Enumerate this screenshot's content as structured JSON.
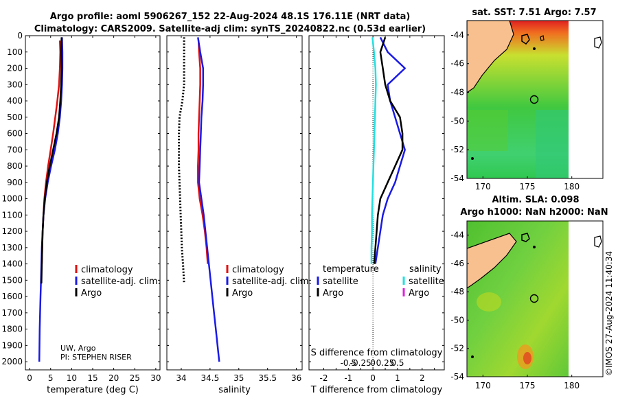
{
  "header": {
    "line1": "Argo profile: aoml 5906267_152 22-Aug-2024 48.1S 176.11E (NRT data)",
    "line2": "Climatology: CARS2009. Satellite-adj clim: synTS_20240822.nc (0.53d earlier)"
  },
  "colors": {
    "climatology": "#e01010",
    "satellite": "#1a1ae6",
    "argo": "#000000",
    "sal_satellite": "#22e0e0",
    "sal_argo": "#e020e0",
    "land": "#f7c08e"
  },
  "depth_axis": {
    "ticks": [
      "0",
      "100",
      "200",
      "300",
      "400",
      "500",
      "600",
      "700",
      "800",
      "900",
      "1000",
      "1100",
      "1200",
      "1300",
      "1400",
      "1500",
      "1600",
      "1700",
      "1800",
      "1900",
      "2000"
    ]
  },
  "legend": {
    "climatology": "climatology",
    "satellite_clim": "satellite-adj. clim.",
    "argo": "Argo",
    "temperature_head": "temperature",
    "salinity_head": "salinity",
    "satellite": "satellite"
  },
  "credit": {
    "line1": "UW, Argo",
    "line2": "PI: STEPHEN RISER"
  },
  "map_top": {
    "title": "sat. SST: 7.51 Argo: 7.57"
  },
  "map_bottom": {
    "title1": "Altim. SLA: 0.098",
    "title2": "Argo h1000: NaN h2000: NaN"
  },
  "map_axes": {
    "lon_ticks": [
      "170",
      "175",
      "180"
    ],
    "lat_ticks": [
      "-44",
      "-46",
      "-48",
      "-50",
      "-52",
      "-54"
    ]
  },
  "watermark": "©IMOS 27-Aug-2024 11:40:34",
  "chart_data": [
    {
      "type": "line",
      "name": "temperature",
      "xlabel": "temperature (deg C)",
      "ylabel": "",
      "xlim": [
        -1,
        31
      ],
      "ylim": [
        2050,
        0
      ],
      "xticks": [
        "0",
        "5",
        "10",
        "15",
        "20",
        "25",
        "30"
      ],
      "series": [
        {
          "name": "climatology",
          "color": "climatology",
          "x": [
            7.2,
            7.3,
            7.2,
            7.0,
            6.6,
            6.1,
            5.6,
            5.0,
            4.4,
            3.9,
            3.5,
            3.3,
            3.1,
            3.0,
            2.9
          ],
          "y": [
            30,
            100,
            200,
            300,
            400,
            500,
            600,
            700,
            800,
            900,
            1000,
            1100,
            1200,
            1300,
            1400
          ]
        },
        {
          "name": "satellite-adj. clim.",
          "color": "satellite",
          "x": [
            7.7,
            7.8,
            7.8,
            7.7,
            7.5,
            7.2,
            6.7,
            6.0,
            5.1,
            4.3,
            3.7,
            3.3,
            3.1,
            2.9,
            2.8,
            2.7,
            2.6,
            2.5,
            2.4,
            2.35,
            2.3
          ],
          "y": [
            10,
            100,
            200,
            300,
            400,
            500,
            600,
            700,
            800,
            900,
            1000,
            1100,
            1200,
            1300,
            1400,
            1500,
            1600,
            1700,
            1800,
            1900,
            2000
          ]
        },
        {
          "name": "Argo",
          "color": "argo",
          "x": [
            7.6,
            7.5,
            7.6,
            7.5,
            7.3,
            7.0,
            6.4,
            5.6,
            4.8,
            4.1,
            3.6,
            3.3,
            3.1,
            3.0,
            2.9,
            2.8
          ],
          "y": [
            10,
            100,
            200,
            300,
            400,
            500,
            600,
            700,
            800,
            900,
            1000,
            1100,
            1200,
            1300,
            1400,
            1520
          ]
        }
      ]
    },
    {
      "type": "line",
      "name": "salinity",
      "xlabel": "salinity",
      "ylabel": "",
      "xlim": [
        33.75,
        36.1
      ],
      "ylim": [
        2050,
        0
      ],
      "xticks": [
        "34",
        "34.5",
        "35",
        "35.5",
        "36"
      ],
      "series": [
        {
          "name": "climatology",
          "color": "climatology",
          "x": [
            34.3,
            34.31,
            34.33,
            34.33,
            34.32,
            34.31,
            34.3,
            34.3,
            34.29,
            34.29,
            34.32,
            34.37,
            34.41,
            34.44,
            34.46
          ],
          "y": [
            30,
            100,
            200,
            300,
            400,
            500,
            600,
            700,
            800,
            900,
            1000,
            1100,
            1200,
            1300,
            1400
          ]
        },
        {
          "name": "satellite-adj. clim.",
          "color": "satellite",
          "x": [
            34.29,
            34.33,
            34.38,
            34.38,
            34.37,
            34.35,
            34.34,
            34.33,
            34.32,
            34.31,
            34.35,
            34.39,
            34.42,
            34.45,
            34.48,
            34.51,
            34.54,
            34.57,
            34.6,
            34.63,
            34.66
          ],
          "y": [
            10,
            100,
            200,
            300,
            400,
            500,
            600,
            700,
            800,
            900,
            1000,
            1100,
            1200,
            1300,
            1400,
            1500,
            1600,
            1700,
            1800,
            1900,
            2000
          ]
        },
        {
          "name": "Argo",
          "color": "argo",
          "dashed": true,
          "x": [
            34.05,
            34.05,
            34.05,
            34.05,
            34.02,
            33.97,
            33.96,
            33.96,
            33.96,
            33.97,
            33.98,
            33.99,
            34.0,
            34.01,
            34.03,
            34.05
          ],
          "y": [
            10,
            100,
            200,
            300,
            400,
            500,
            600,
            700,
            800,
            900,
            1000,
            1100,
            1200,
            1300,
            1400,
            1520
          ]
        }
      ]
    },
    {
      "type": "line",
      "name": "difference",
      "xlabel": "T difference from climatology",
      "xlabel_top": "S difference from climatology",
      "xlim": [
        -2.6,
        2.9
      ],
      "ylim": [
        2050,
        0
      ],
      "xticks": [
        "-2",
        "-1.5",
        "-1",
        "-0.5",
        "0",
        "0.5",
        "1",
        "1.5",
        "2",
        "2.5"
      ],
      "sticks": [
        "-0.5",
        "-0.25",
        "0",
        "0.25",
        "0.5"
      ],
      "series": [
        {
          "name": "T satellite",
          "color": "satellite",
          "x": [
            0.3,
            0.6,
            1.3,
            0.6,
            0.7,
            0.9,
            1.1,
            1.3,
            1.1,
            0.9,
            0.6,
            0.4,
            0.3,
            0.2,
            0.1
          ],
          "y": [
            10,
            100,
            200,
            300,
            400,
            500,
            600,
            700,
            800,
            900,
            1000,
            1100,
            1200,
            1300,
            1400
          ]
        },
        {
          "name": "T Argo",
          "color": "argo",
          "x": [
            0.5,
            0.3,
            0.4,
            0.5,
            0.7,
            1.1,
            1.2,
            1.2,
            0.9,
            0.6,
            0.3,
            0.2,
            0.15,
            0.1,
            0.05
          ],
          "y": [
            10,
            100,
            200,
            300,
            400,
            500,
            600,
            700,
            800,
            900,
            1000,
            1100,
            1200,
            1300,
            1400
          ]
        },
        {
          "name": "S satellite",
          "color": "sal_satellite",
          "x": [
            -0.01,
            0.02,
            0.05,
            0.06,
            0.05,
            0.04,
            0.03,
            0.02,
            0.01,
            0.0,
            -0.01,
            -0.02,
            -0.02,
            -0.03,
            -0.03
          ],
          "y": [
            10,
            100,
            200,
            300,
            400,
            500,
            600,
            700,
            800,
            900,
            1000,
            1100,
            1200,
            1300,
            1400
          ]
        }
      ]
    }
  ]
}
